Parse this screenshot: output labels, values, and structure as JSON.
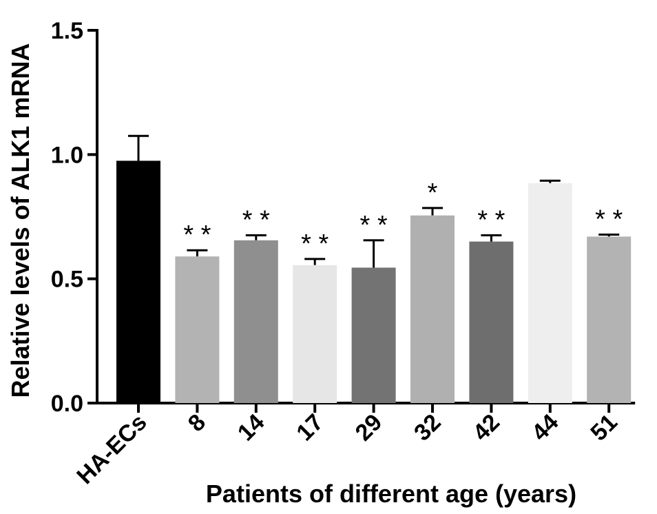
{
  "chart_data": {
    "type": "bar",
    "title": "",
    "xlabel": "Patients of different age (years)",
    "ylabel": "Relative levels of ALK1 mRNA",
    "ylim": [
      0,
      1.5
    ],
    "yticks": [
      0.0,
      0.5,
      1.0,
      1.5
    ],
    "ytick_labels": [
      "0.0",
      "0.5",
      "1.0",
      "1.5"
    ],
    "categories": [
      "HA-ECs",
      "8",
      "14",
      "17",
      "29",
      "32",
      "42",
      "44",
      "51"
    ],
    "values": [
      0.975,
      0.59,
      0.655,
      0.555,
      0.545,
      0.755,
      0.65,
      0.885,
      0.67
    ],
    "errors": [
      0.1,
      0.025,
      0.02,
      0.025,
      0.11,
      0.03,
      0.025,
      0.01,
      0.008
    ],
    "significance": [
      "",
      "* *",
      "* *",
      "* *",
      "* *",
      "*",
      "* *",
      "",
      "* *"
    ],
    "colors": [
      "#000000",
      "#b3b3b3",
      "#8f8f8f",
      "#e6e6e6",
      "#737373",
      "#b0b0b0",
      "#6e6e6e",
      "#eeeeee",
      "#b3b3b3"
    ]
  }
}
